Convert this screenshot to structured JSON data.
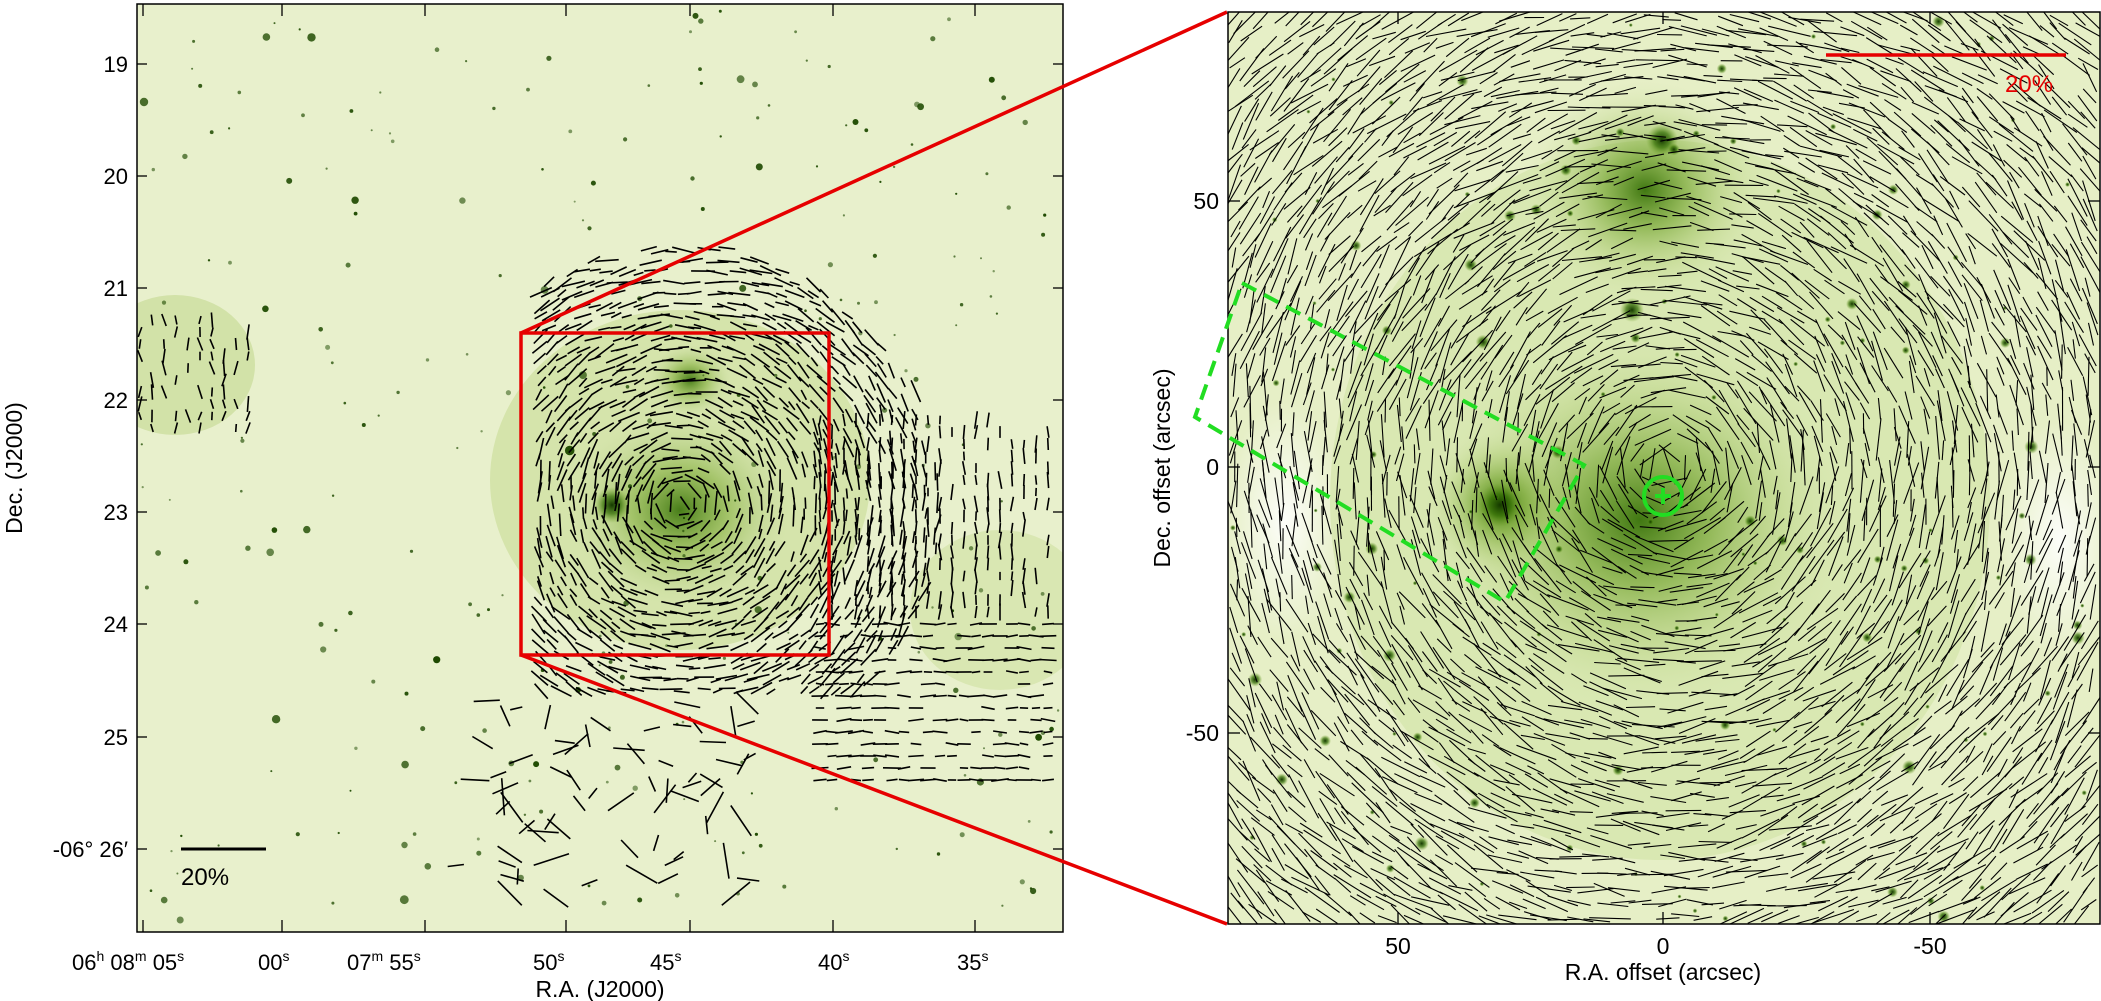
{
  "left_panel": {
    "xlabel": "R.A. (J2000)",
    "ylabel": "Dec. (J2000)",
    "x_ticks": [
      {
        "h": "06",
        "m": "08",
        "s": "05"
      },
      {
        "s": "00"
      },
      {
        "h": "",
        "m": "07",
        "s": "55"
      },
      {
        "s": "50"
      },
      {
        "s": "45"
      },
      {
        "s": "40"
      },
      {
        "s": "35"
      }
    ],
    "y_ticks": [
      "19",
      "20",
      "21",
      "22",
      "23",
      "24",
      "25",
      "-06° 26′"
    ],
    "scale_bar_label": "20%"
  },
  "right_panel": {
    "xlabel": "R.A. offset (arcsec)",
    "ylabel": "Dec. offset (arcsec)",
    "x_ticks": [
      "50",
      "0",
      "-50"
    ],
    "y_ticks": [
      "50",
      "0",
      "-50"
    ],
    "scale_bar_label": "20%"
  },
  "colors": {
    "background": "#e9f1cf",
    "nebula": "#2f6b00",
    "star": "#1e4a00",
    "vector": "#000000",
    "zoom_box": "#e60000",
    "region": "#22dd22"
  }
}
